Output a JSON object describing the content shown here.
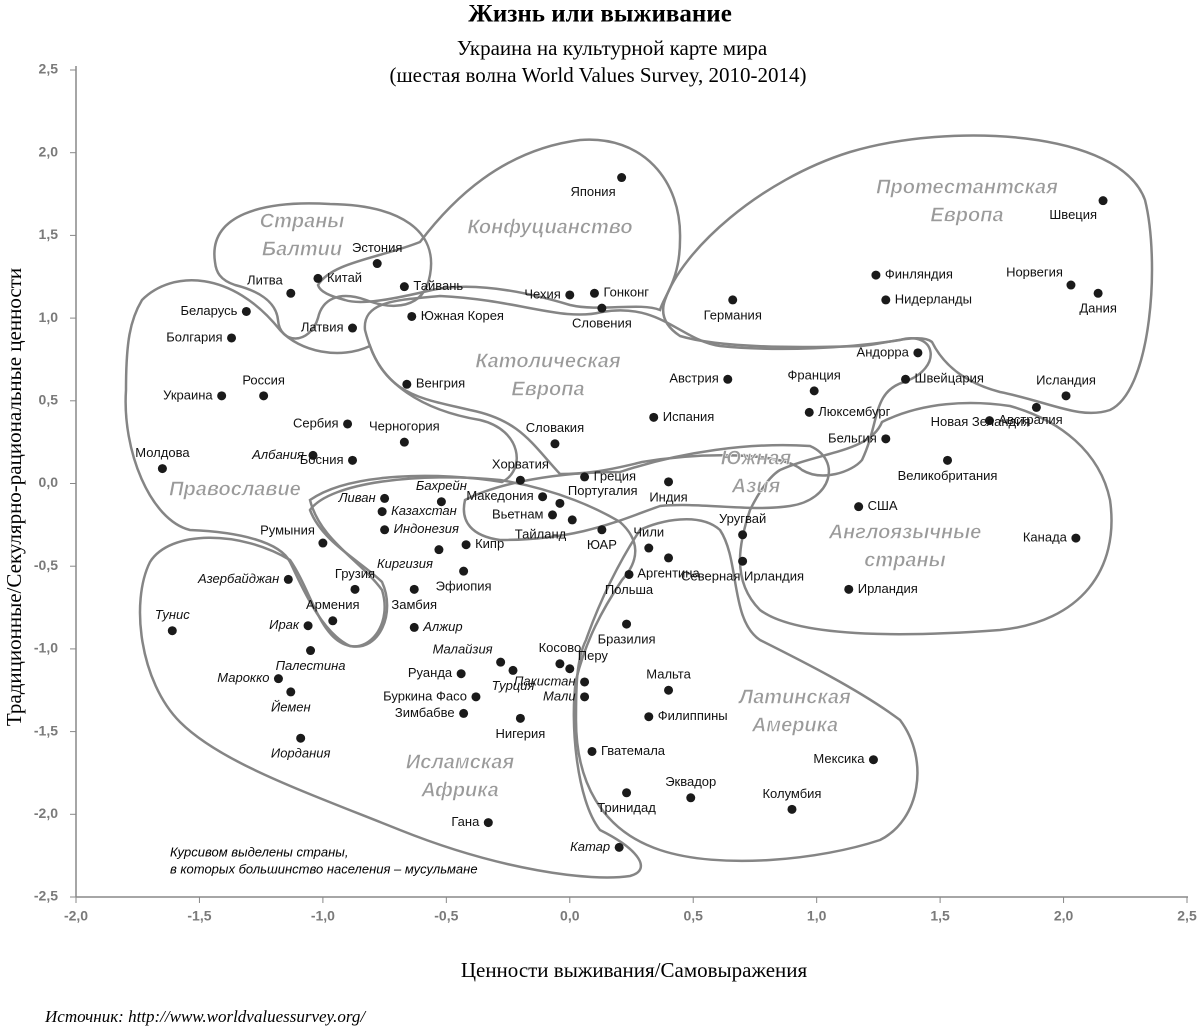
{
  "chart_data": {
    "type": "scatter",
    "title": "Жизнь или выживание",
    "subtitle": [
      "Украина на культурной карте мира",
      "(шестая волна World Values Survey, 2010-2014)"
    ],
    "xlabel": "Ценности выживания/Самовыражения",
    "ylabel": "Традиционные/Секулярно-рациональные ценности",
    "note": [
      "Курсивом выделены страны,",
      "в которых большинство населения – мусульмане"
    ],
    "source": "Источник: http://www.worldvaluessurvey.org/",
    "xlim": [
      -2.0,
      2.5
    ],
    "ylim": [
      -2.5,
      2.5
    ],
    "xticks": [
      {
        "value": -2.0,
        "label": "-2,0"
      },
      {
        "value": -1.5,
        "label": "-1,5"
      },
      {
        "value": -1.0,
        "label": "-1,0"
      },
      {
        "value": -0.5,
        "label": "-0,5"
      },
      {
        "value": 0.0,
        "label": "0,0"
      },
      {
        "value": 0.5,
        "label": "0,5"
      },
      {
        "value": 1.0,
        "label": "1,0"
      },
      {
        "value": 1.5,
        "label": "1,5"
      },
      {
        "value": 2.0,
        "label": "2,0"
      },
      {
        "value": 2.5,
        "label": "2,5"
      }
    ],
    "yticks": [
      {
        "value": -2.5,
        "label": "-2,5"
      },
      {
        "value": -2.0,
        "label": "-2,0"
      },
      {
        "value": -1.5,
        "label": "-1,5"
      },
      {
        "value": -1.0,
        "label": "-1,0"
      },
      {
        "value": -0.5,
        "label": "-0,5"
      },
      {
        "value": 0.0,
        "label": "0,0"
      },
      {
        "value": 0.5,
        "label": "0,5"
      },
      {
        "value": 1.0,
        "label": "1,0"
      },
      {
        "value": 1.5,
        "label": "1,5"
      },
      {
        "value": 2.0,
        "label": "2,0"
      },
      {
        "value": 2.5,
        "label": "2,5"
      }
    ],
    "color": "#1a1a1a",
    "labels": [
      "Япония",
      "Швеция",
      "Эстония",
      "Литва",
      "Китай",
      "Тайвань",
      "Южная Корея",
      "Беларусь",
      "Болгария",
      "Латвия",
      "Чехия",
      "Гонконг",
      "Словения",
      "Германия",
      "Финляндия",
      "Норвегия",
      "Нидерланды",
      "Дания",
      "Андорра",
      "Швейцария",
      "Исландия",
      "Австралия",
      "Новая Зеландия",
      "Великобритания",
      "Франция",
      "Люксембург",
      "Бельгия",
      "Австрия",
      "Испания",
      "Украина",
      "Россия",
      "Венгрия",
      "Сербия",
      "Черногория",
      "Словакия",
      "Молдова",
      "Албания",
      "Босния",
      "Хорватия",
      "Греция",
      "Македония",
      "Португалия",
      "Индия",
      "Ливан",
      "Бахрейн",
      "Казахстан",
      "Индонезия",
      "Вьетнам",
      "Тайланд",
      "ЮАР",
      "США",
      "Уругвай",
      "Канада",
      "Кипр",
      "Киргизия",
      "Румыния",
      "Чили",
      "Аргентина",
      "Эфиопия",
      "Польша",
      "Северная Ирландия",
      "Ирландия",
      "Азербайджан",
      "Грузия",
      "Замбия",
      "Тунис",
      "Ирак",
      "Армения",
      "Алжир",
      "Бразилия",
      "Палестина",
      "Малайзия",
      "Турция",
      "Косово",
      "Перу",
      "Руанда",
      "Пакистан",
      "Мальта",
      "Марокко",
      "Йемен",
      "Буркина Фасо",
      "Мали",
      "Зимбабве",
      "Нигерия",
      "Филиппины",
      "Иордания",
      "Гватемала",
      "Мексика",
      "Эквадор",
      "Тринидад",
      "Колумбия",
      "Гана",
      "Катар"
    ],
    "x": [
      0.21,
      2.16,
      -0.78,
      -1.13,
      -1.02,
      -0.67,
      -0.64,
      -1.31,
      -1.37,
      -0.88,
      0.0,
      0.1,
      0.13,
      0.66,
      1.24,
      2.03,
      1.28,
      2.14,
      1.41,
      1.36,
      2.01,
      1.7,
      1.89,
      1.53,
      0.99,
      0.97,
      1.28,
      0.64,
      0.34,
      -1.41,
      -1.24,
      -0.66,
      -0.9,
      -0.67,
      -0.06,
      -1.65,
      -1.04,
      -0.88,
      -0.2,
      0.06,
      -0.11,
      -0.04,
      0.4,
      -0.75,
      -0.52,
      -0.76,
      -0.75,
      -0.07,
      0.01,
      0.13,
      1.17,
      0.7,
      2.05,
      -0.42,
      -0.53,
      -1.0,
      0.32,
      0.4,
      -0.43,
      0.24,
      0.7,
      1.13,
      -1.14,
      -0.87,
      -0.63,
      -1.61,
      -1.06,
      -0.96,
      -0.63,
      0.23,
      -1.05,
      -0.28,
      -0.23,
      -0.04,
      0.0,
      -0.44,
      0.06,
      0.4,
      -1.18,
      -1.13,
      -0.38,
      0.06,
      -0.43,
      -0.2,
      0.32,
      -1.09,
      0.09,
      1.23,
      0.49,
      0.23,
      0.9,
      -0.33,
      0.2
    ],
    "values": [
      1.85,
      1.71,
      1.33,
      1.15,
      1.24,
      1.19,
      1.01,
      1.04,
      0.88,
      0.94,
      1.14,
      1.15,
      1.06,
      1.11,
      1.26,
      1.2,
      1.11,
      1.15,
      0.79,
      0.63,
      0.53,
      0.38,
      0.46,
      0.14,
      0.56,
      0.43,
      0.27,
      0.63,
      0.4,
      0.53,
      0.53,
      0.6,
      0.36,
      0.25,
      0.24,
      0.09,
      0.17,
      0.14,
      0.02,
      0.04,
      -0.08,
      -0.12,
      0.01,
      -0.09,
      -0.11,
      -0.17,
      -0.28,
      -0.19,
      -0.22,
      -0.28,
      -0.14,
      -0.31,
      -0.33,
      -0.37,
      -0.4,
      -0.36,
      -0.39,
      -0.45,
      -0.53,
      -0.55,
      -0.47,
      -0.64,
      -0.58,
      -0.64,
      -0.64,
      -0.89,
      -0.86,
      -0.83,
      -0.87,
      -0.85,
      -1.01,
      -1.08,
      -1.13,
      -1.09,
      -1.12,
      -1.15,
      -1.2,
      -1.25,
      -1.18,
      -1.26,
      -1.29,
      -1.29,
      -1.39,
      -1.42,
      -1.41,
      -1.54,
      -1.62,
      -1.67,
      -1.9,
      -1.87,
      -1.97,
      -2.05,
      -2.2
    ],
    "italic_points": [
      36,
      43,
      44,
      45,
      46,
      54,
      62,
      65,
      66,
      68,
      70,
      71,
      72,
      76,
      78,
      79,
      81,
      85,
      92
    ],
    "regions": [
      {
        "name": [
          "Страны",
          "Балтии"
        ]
      },
      {
        "name": [
          "Конфуцианство"
        ]
      },
      {
        "name": [
          "Протестантская",
          "Европа"
        ]
      },
      {
        "name": [
          "Католическая",
          "Европа"
        ]
      },
      {
        "name": [
          "Южная",
          "Азия"
        ]
      },
      {
        "name": [
          "Православие"
        ]
      },
      {
        "name": [
          "Англоязычные",
          "страны"
        ]
      },
      {
        "name": [
          "Исламская",
          "Африка"
        ]
      },
      {
        "name": [
          "Латинская",
          "Америка"
        ]
      }
    ]
  }
}
